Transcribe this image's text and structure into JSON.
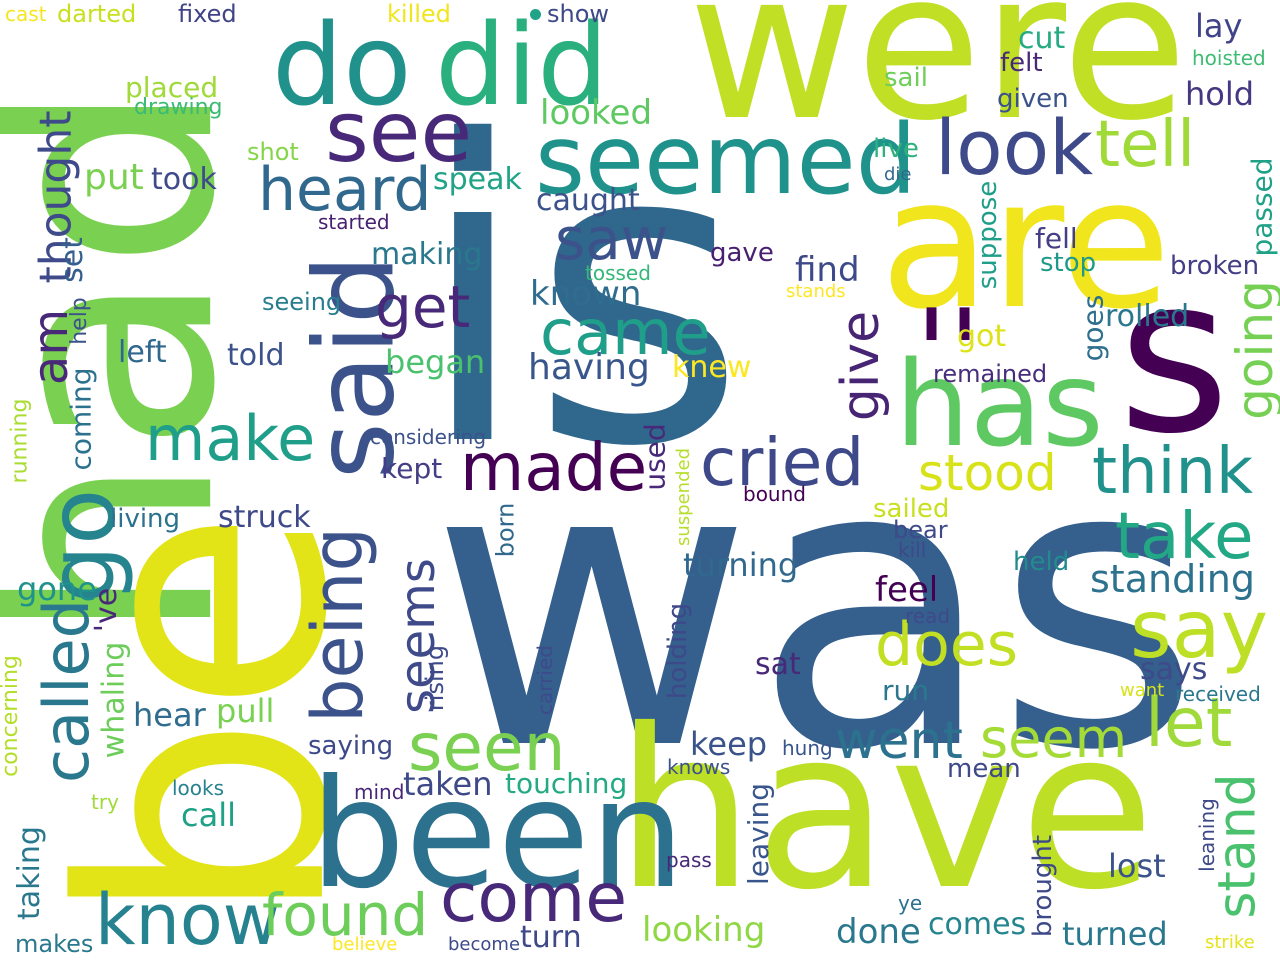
{
  "words": [
    {
      "id": "is",
      "text": "is",
      "color": "#30678d"
    },
    {
      "id": "was",
      "text": "was",
      "color": "#355f8d"
    },
    {
      "id": "had",
      "text": "had",
      "color": "#7ad151"
    },
    {
      "id": "be",
      "text": "be",
      "color": "#e2e418"
    },
    {
      "id": "have",
      "text": "have",
      "color": "#bddf26"
    },
    {
      "id": "were",
      "text": "were",
      "color": "#c0df25"
    },
    {
      "id": "are",
      "text": "are",
      "color": "#f1e51d"
    },
    {
      "id": "been",
      "text": "been",
      "color": "#2c728e"
    },
    {
      "id": "s",
      "text": "s",
      "color": "#440154"
    },
    {
      "id": "has",
      "text": "has",
      "color": "#5ec962"
    },
    {
      "id": "quotes",
      "text": "''",
      "color": "#440154"
    },
    {
      "id": "do",
      "text": "do",
      "color": "#21918c"
    },
    {
      "id": "did",
      "text": "did",
      "color": "#2ab07f"
    },
    {
      "id": "said",
      "text": "said",
      "color": "#3b528b"
    },
    {
      "id": "seemed",
      "text": "seemed",
      "color": "#20928c"
    },
    {
      "id": "see",
      "text": "see",
      "color": "#482878"
    },
    {
      "id": "look",
      "text": "look",
      "color": "#3e4a89"
    },
    {
      "id": "tell",
      "text": "tell",
      "color": "#a0da39"
    },
    {
      "id": "heard",
      "text": "heard",
      "color": "#31688e"
    },
    {
      "id": "came",
      "text": "came",
      "color": "#1f9e89"
    },
    {
      "id": "saw",
      "text": "saw",
      "color": "#3b528b"
    },
    {
      "id": "get",
      "text": "get",
      "color": "#482878"
    },
    {
      "id": "made",
      "text": "made",
      "color": "#440154"
    },
    {
      "id": "cried",
      "text": "cried",
      "color": "#3e4989"
    },
    {
      "id": "think",
      "text": "think",
      "color": "#21918c"
    },
    {
      "id": "being",
      "text": "being",
      "color": "#3b528b"
    },
    {
      "id": "make",
      "text": "make",
      "color": "#1f9e89"
    },
    {
      "id": "go",
      "text": "go",
      "color": "#25848e"
    },
    {
      "id": "called",
      "text": "called",
      "color": "#2a788e"
    },
    {
      "id": "stood",
      "text": "stood",
      "color": "#d8e219"
    },
    {
      "id": "take",
      "text": "take",
      "color": "#22a884"
    },
    {
      "id": "say",
      "text": "say",
      "color": "#bddf26"
    },
    {
      "id": "let",
      "text": "let",
      "color": "#9fda3a"
    },
    {
      "id": "seen",
      "text": "seen",
      "color": "#7ad151"
    },
    {
      "id": "went",
      "text": "went",
      "color": "#2c728e"
    },
    {
      "id": "seem",
      "text": "seem",
      "color": "#a5db36"
    },
    {
      "id": "know",
      "text": "know",
      "color": "#26828e"
    },
    {
      "id": "found",
      "text": "found",
      "color": "#6ccd5a"
    },
    {
      "id": "come",
      "text": "come",
      "color": "#482878"
    },
    {
      "id": "stand",
      "text": "stand",
      "color": "#4ac16d"
    },
    {
      "id": "going",
      "text": "going",
      "color": "#75d054"
    },
    {
      "id": "give",
      "text": "give",
      "color": "#482475"
    },
    {
      "id": "does",
      "text": "does",
      "color": "#c2df23"
    },
    {
      "id": "standing",
      "text": "standing",
      "color": "#2c728e"
    },
    {
      "id": "seems",
      "text": "seems",
      "color": "#3e4a89"
    },
    {
      "id": "am",
      "text": "am",
      "color": "#482878"
    },
    {
      "id": "thought",
      "text": "thought",
      "color": "#3e4a89"
    },
    {
      "id": "known",
      "text": "known",
      "color": "#2f6c8e"
    },
    {
      "id": "having",
      "text": "having",
      "color": "#39568c"
    },
    {
      "id": "find",
      "text": "find",
      "color": "#3e4989"
    },
    {
      "id": "speak",
      "text": "speak",
      "color": "#20a386"
    },
    {
      "id": "caught",
      "text": "caught",
      "color": "#3b528b"
    },
    {
      "id": "making",
      "text": "making",
      "color": "#2a788e"
    },
    {
      "id": "took",
      "text": "took",
      "color": "#3e4a89"
    },
    {
      "id": "put",
      "text": "put",
      "color": "#7ad151"
    },
    {
      "id": "set",
      "text": "set",
      "color": "#355f8d"
    },
    {
      "id": "looked",
      "text": "looked",
      "color": "#5ec962"
    },
    {
      "id": "placed",
      "text": "placed",
      "color": "#a0da39"
    },
    {
      "id": "drawing",
      "text": "drawing",
      "color": "#3bbb75"
    },
    {
      "id": "shot",
      "text": "shot",
      "color": "#86d549"
    },
    {
      "id": "darted",
      "text": "darted",
      "color": "#c8e020"
    },
    {
      "id": "fixed",
      "text": "fixed",
      "color": "#404387"
    },
    {
      "id": "killed",
      "text": "killed",
      "color": "#f1e51d"
    },
    {
      "id": "show",
      "text": "show",
      "color": "#3e4989"
    },
    {
      "id": "cast",
      "text": "cast",
      "color": "#f4e61e"
    },
    {
      "id": "cut",
      "text": "cut",
      "color": "#25ac82"
    },
    {
      "id": "felt",
      "text": "felt",
      "color": "#482878"
    },
    {
      "id": "lay",
      "text": "lay",
      "color": "#404387"
    },
    {
      "id": "hoisted",
      "text": "hoisted",
      "color": "#3fbc73"
    },
    {
      "id": "sail",
      "text": "sail",
      "color": "#6ece58"
    },
    {
      "id": "hold",
      "text": "hold",
      "color": "#453781"
    },
    {
      "id": "given",
      "text": "given",
      "color": "#3b528b"
    },
    {
      "id": "live",
      "text": "live",
      "color": "#2db27d"
    },
    {
      "id": "die",
      "text": "die",
      "color": "#31688e"
    },
    {
      "id": "suppose",
      "text": "suppose",
      "color": "#1f9e89"
    },
    {
      "id": "passed",
      "text": "passed",
      "color": "#1fa187"
    },
    {
      "id": "fell",
      "text": "fell",
      "color": "#433e85"
    },
    {
      "id": "stop",
      "text": "stop",
      "color": "#1f9a8a"
    },
    {
      "id": "broken",
      "text": "broken",
      "color": "#433e85"
    },
    {
      "id": "gave",
      "text": "gave",
      "color": "#482071"
    },
    {
      "id": "tossed",
      "text": "tossed",
      "color": "#35b779"
    },
    {
      "id": "stands",
      "text": "stands",
      "color": "#fde725"
    },
    {
      "id": "got",
      "text": "got",
      "color": "#dde318"
    },
    {
      "id": "goes",
      "text": "goes",
      "color": "#2e6e8e"
    },
    {
      "id": "rolled",
      "text": "rolled",
      "color": "#2a788e"
    },
    {
      "id": "remained",
      "text": "remained",
      "color": "#472d7b"
    },
    {
      "id": "knew",
      "text": "knew",
      "color": "#fde725"
    },
    {
      "id": "started",
      "text": "started",
      "color": "#482071"
    },
    {
      "id": "seeing",
      "text": "seeing",
      "color": "#287d8e"
    },
    {
      "id": "help",
      "text": "help",
      "color": "#3b528b"
    },
    {
      "id": "left",
      "text": "left",
      "color": "#30678d"
    },
    {
      "id": "told",
      "text": "told",
      "color": "#3b528b"
    },
    {
      "id": "began",
      "text": "began",
      "color": "#4ac16d"
    },
    {
      "id": "coming",
      "text": "coming",
      "color": "#2c728e"
    },
    {
      "id": "running",
      "text": "running",
      "color": "#aadc32"
    },
    {
      "id": "considering",
      "text": "considering",
      "color": "#3b528b"
    },
    {
      "id": "kept",
      "text": "kept",
      "color": "#433e85"
    },
    {
      "id": "struck",
      "text": "struck",
      "color": "#3e4989"
    },
    {
      "id": "living",
      "text": "living",
      "color": "#2c728e"
    },
    {
      "id": "used",
      "text": "used",
      "color": "#482878"
    },
    {
      "id": "born",
      "text": "born",
      "color": "#31688e"
    },
    {
      "id": "bound",
      "text": "bound",
      "color": "#440154"
    },
    {
      "id": "suspended",
      "text": "suspended",
      "color": "#b5de2b"
    },
    {
      "id": "sailed",
      "text": "sailed",
      "color": "#c8e020"
    },
    {
      "id": "bear",
      "text": "bear",
      "color": "#3e4989"
    },
    {
      "id": "kill",
      "text": "kill",
      "color": "#3e4989"
    },
    {
      "id": "held",
      "text": "held",
      "color": "#228c8d"
    },
    {
      "id": "turning",
      "text": "turning",
      "color": "#31688e"
    },
    {
      "id": "feel",
      "text": "feel",
      "color": "#440154"
    },
    {
      "id": "gone",
      "text": "gone",
      "color": "#20928c"
    },
    {
      "id": "whaling",
      "text": "whaling",
      "color": "#6ccd5a"
    },
    {
      "id": "ve",
      "text": "'ve",
      "color": "#482878"
    },
    {
      "id": "concerning",
      "text": "concerning",
      "color": "#b5de2b"
    },
    {
      "id": "rising",
      "text": "rising",
      "color": "#3e4a89"
    },
    {
      "id": "read",
      "text": "read",
      "color": "#3e4a89"
    },
    {
      "id": "sat",
      "text": "sat",
      "color": "#482878"
    },
    {
      "id": "says",
      "text": "says",
      "color": "#3e4a89"
    },
    {
      "id": "run",
      "text": "run",
      "color": "#2a788e"
    },
    {
      "id": "want",
      "text": "want",
      "color": "#d8e219"
    },
    {
      "id": "received",
      "text": "received",
      "color": "#2a788e"
    },
    {
      "id": "carried",
      "text": "carried",
      "color": "#3e4a89"
    },
    {
      "id": "holding",
      "text": "holding",
      "color": "#3e4989"
    },
    {
      "id": "hear",
      "text": "hear",
      "color": "#2f6c8e"
    },
    {
      "id": "pull",
      "text": "pull",
      "color": "#7ad151"
    },
    {
      "id": "saying",
      "text": "saying",
      "color": "#3e4989"
    },
    {
      "id": "keep",
      "text": "keep",
      "color": "#3a538b"
    },
    {
      "id": "hung",
      "text": "hung",
      "color": "#39568c"
    },
    {
      "id": "knows",
      "text": "knows",
      "color": "#3b528b"
    },
    {
      "id": "mean",
      "text": "mean",
      "color": "#3e4989"
    },
    {
      "id": "taken",
      "text": "taken",
      "color": "#3e4989"
    },
    {
      "id": "touching",
      "text": "touching",
      "color": "#23a983"
    },
    {
      "id": "looks",
      "text": "looks",
      "color": "#26828e"
    },
    {
      "id": "mind",
      "text": "mind",
      "color": "#482878"
    },
    {
      "id": "try",
      "text": "try",
      "color": "#a0da39"
    },
    {
      "id": "call",
      "text": "call",
      "color": "#1fa187"
    },
    {
      "id": "leaving",
      "text": "leaving",
      "color": "#39568c"
    },
    {
      "id": "brought",
      "text": "brought",
      "color": "#3e4989"
    },
    {
      "id": "leaning",
      "text": "leaning",
      "color": "#3e4989"
    },
    {
      "id": "lost",
      "text": "lost",
      "color": "#3b528b"
    },
    {
      "id": "taking",
      "text": "taking",
      "color": "#2a788e"
    },
    {
      "id": "makes",
      "text": "makes",
      "color": "#2a788e"
    },
    {
      "id": "pass",
      "text": "pass",
      "color": "#482878"
    },
    {
      "id": "ye",
      "text": "ye",
      "color": "#2c728e"
    },
    {
      "id": "comes",
      "text": "comes",
      "color": "#25858e"
    },
    {
      "id": "done",
      "text": "done",
      "color": "#2a788e"
    },
    {
      "id": "looking",
      "text": "looking",
      "color": "#8fd744"
    },
    {
      "id": "turned",
      "text": "turned",
      "color": "#2a788e"
    },
    {
      "id": "turn",
      "text": "turn",
      "color": "#3e4989"
    },
    {
      "id": "believe",
      "text": "believe",
      "color": "#fde725"
    },
    {
      "id": "become",
      "text": "become",
      "color": "#3e4989"
    },
    {
      "id": "strike",
      "text": "strike",
      "color": "#e5e419"
    }
  ]
}
